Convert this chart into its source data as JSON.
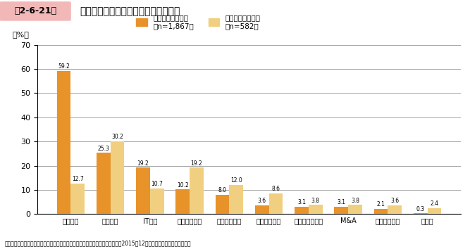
{
  "title": "第2-6-21図　最も成功した投資と最も失敗した投資",
  "categories": [
    "設備投資",
    "人材投資",
    "IT投資",
    "広告宣伝投資",
    "研究開発投資",
    "海外展開投資",
    "マーケティング",
    "M&A",
    "知財活用投資",
    "その他"
  ],
  "success_values": [
    59.2,
    25.3,
    19.2,
    10.2,
    8.0,
    3.6,
    3.1,
    3.1,
    2.1,
    0.3
  ],
  "failure_values": [
    12.7,
    30.2,
    10.7,
    19.2,
    12.0,
    8.6,
    3.8,
    3.8,
    3.6,
    2.4
  ],
  "success_label": "最も成功した投資\n（n=1,867）",
  "failure_label": "最も失敗した投資\n（n=582）",
  "success_color": "#E8922A",
  "failure_color": "#F0D080",
  "ylabel": "（%）",
  "ylim": [
    0,
    70
  ],
  "yticks": [
    0,
    10,
    20,
    30,
    40,
    50,
    60,
    70
  ],
  "source": "資料：中小企業庁委託「中小企業の成長と投資行動に関するアンケート調査」（2015年12月、（株）帝国データバンク）",
  "title_box_color": "#F2B8B8",
  "title_box_text": "第2-6-21図",
  "title_main": "最も成功した投資と最も失敗した投資",
  "bar_width": 0.35
}
